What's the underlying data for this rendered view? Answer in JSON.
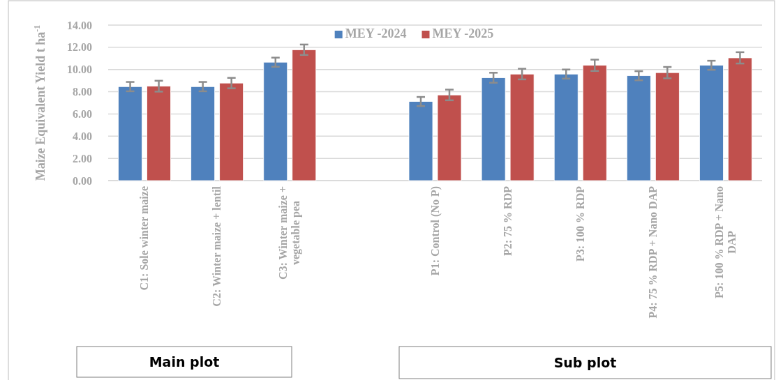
{
  "chart_data": {
    "type": "bar",
    "ylabel": "Maize Equivalent Yield t ha$^{-1}$",
    "categories": [
      "C1: Sole winter maize",
      "C2: Winter maize + lentil",
      "C3: Winter maize + vegetable pea",
      null,
      "P1: Control (No P)",
      "P2: 75 % RDP",
      "P3: 100 % RDP",
      "P4: 75 % RDP + Nano DAP",
      "P5: 100 % RDP + Nano DAP"
    ],
    "series": [
      {
        "name": "MEY -2024",
        "color": "#4f81bd",
        "values": [
          8.46,
          8.46,
          10.66,
          null,
          7.12,
          9.26,
          9.59,
          9.44,
          10.38
        ],
        "errors": [
          0.42,
          0.42,
          0.41,
          null,
          0.41,
          0.45,
          0.41,
          0.41,
          0.41
        ]
      },
      {
        "name": "MEY -2025",
        "color": "#c0504d",
        "values": [
          8.5,
          8.78,
          11.78,
          null,
          7.71,
          9.59,
          10.38,
          9.72,
          11.05
        ],
        "errors": [
          0.49,
          0.47,
          0.47,
          null,
          0.48,
          0.48,
          0.51,
          0.51,
          0.51
        ]
      }
    ],
    "ylim": [
      0,
      14
    ],
    "yticks": [
      {
        "value": 0,
        "label": "0.00"
      },
      {
        "value": 2,
        "label": "2.00"
      },
      {
        "value": 4,
        "label": "4.00"
      },
      {
        "value": 6,
        "label": "6.00"
      },
      {
        "value": 8,
        "label": "8.00"
      },
      {
        "value": 10,
        "label": "10.00"
      },
      {
        "value": 12,
        "label": "12.00"
      },
      {
        "value": 14,
        "label": "14.00"
      }
    ],
    "grid": "y",
    "legend": "top",
    "annotations": [
      "Main plot",
      "Sub plot"
    ]
  }
}
